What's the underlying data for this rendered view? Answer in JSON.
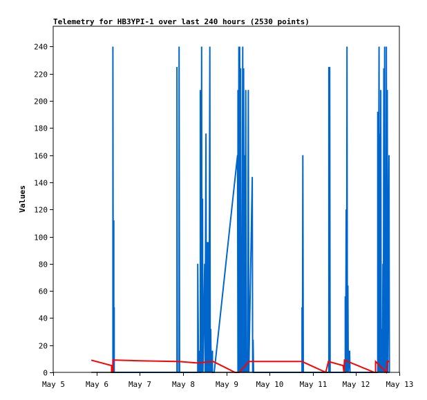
{
  "chart_data": {
    "type": "line",
    "title": "Telemetry for HB3YPI-1 over last 240 hours (2530 points)",
    "xlabel": "",
    "ylabel": "Values",
    "ylim": [
      0,
      255
    ],
    "xlim": [
      0,
      8
    ],
    "x_unit": "days since May 5",
    "yticks": [
      0,
      20,
      40,
      60,
      80,
      100,
      120,
      140,
      160,
      180,
      200,
      220,
      240
    ],
    "xticks": [
      {
        "value": 0,
        "label": "May 5"
      },
      {
        "value": 1,
        "label": "May 6"
      },
      {
        "value": 2,
        "label": "May 7"
      },
      {
        "value": 3,
        "label": "May 8"
      },
      {
        "value": 4,
        "label": "May 9"
      },
      {
        "value": 5,
        "label": "May 10"
      },
      {
        "value": 6,
        "label": "May 11"
      },
      {
        "value": 7,
        "label": "May 12"
      },
      {
        "value": 8,
        "label": "May 13"
      }
    ],
    "grid": false,
    "series": [
      {
        "name": "",
        "color": "#0066cc",
        "points": [
          [
            1.38,
            0
          ],
          [
            1.38,
            240
          ],
          [
            1.39,
            0
          ],
          [
            1.4,
            112
          ],
          [
            1.4,
            0
          ],
          [
            1.41,
            48
          ],
          [
            1.41,
            0
          ],
          [
            2.86,
            0
          ],
          [
            2.86,
            225
          ],
          [
            2.87,
            0
          ],
          [
            2.91,
            0
          ],
          [
            2.91,
            240
          ],
          [
            2.92,
            0
          ],
          [
            3.34,
            0
          ],
          [
            3.34,
            80
          ],
          [
            3.36,
            0
          ],
          [
            3.38,
            16
          ],
          [
            3.38,
            0
          ],
          [
            3.4,
            0
          ],
          [
            3.4,
            208
          ],
          [
            3.41,
            0
          ],
          [
            3.41,
            48
          ],
          [
            3.42,
            0
          ],
          [
            3.43,
            240
          ],
          [
            3.44,
            0
          ],
          [
            3.45,
            128
          ],
          [
            3.46,
            0
          ],
          [
            3.5,
            80
          ],
          [
            3.51,
            0
          ],
          [
            3.53,
            176
          ],
          [
            3.54,
            0
          ],
          [
            3.56,
            96
          ],
          [
            3.57,
            0
          ],
          [
            3.59,
            96
          ],
          [
            3.6,
            0
          ],
          [
            3.62,
            240
          ],
          [
            3.63,
            0
          ],
          [
            3.64,
            32
          ],
          [
            3.65,
            0
          ],
          [
            3.68,
            16
          ],
          [
            3.68,
            0
          ],
          [
            3.72,
            0
          ],
          [
            4.26,
            160
          ],
          [
            4.27,
            0
          ],
          [
            4.27,
            208
          ],
          [
            4.28,
            0
          ],
          [
            4.29,
            240
          ],
          [
            4.3,
            0
          ],
          [
            4.31,
            240
          ],
          [
            4.32,
            0
          ],
          [
            4.33,
            224
          ],
          [
            4.34,
            0
          ],
          [
            4.35,
            96
          ],
          [
            4.36,
            0
          ],
          [
            4.38,
            240
          ],
          [
            4.39,
            0
          ],
          [
            4.4,
            224
          ],
          [
            4.41,
            0
          ],
          [
            4.42,
            160
          ],
          [
            4.43,
            0
          ],
          [
            4.45,
            208
          ],
          [
            4.46,
            0
          ],
          [
            4.48,
            16
          ],
          [
            4.49,
            0
          ],
          [
            4.51,
            208
          ],
          [
            4.52,
            0
          ],
          [
            4.6,
            144
          ],
          [
            4.61,
            0
          ],
          [
            4.62,
            24
          ],
          [
            4.63,
            0
          ],
          [
            5.75,
            0
          ],
          [
            5.75,
            48
          ],
          [
            5.76,
            0
          ],
          [
            5.77,
            160
          ],
          [
            5.78,
            0
          ],
          [
            6.37,
            0
          ],
          [
            6.37,
            225
          ],
          [
            6.38,
            0
          ],
          [
            6.39,
            225
          ],
          [
            6.4,
            0
          ],
          [
            6.75,
            0
          ],
          [
            6.75,
            56
          ],
          [
            6.76,
            0
          ],
          [
            6.77,
            120
          ],
          [
            6.78,
            0
          ],
          [
            6.79,
            240
          ],
          [
            6.8,
            0
          ],
          [
            6.81,
            64
          ],
          [
            6.82,
            0
          ],
          [
            6.85,
            16
          ],
          [
            6.86,
            0
          ],
          [
            7.5,
            0
          ],
          [
            7.5,
            192
          ],
          [
            7.51,
            0
          ],
          [
            7.53,
            240
          ],
          [
            7.54,
            0
          ],
          [
            7.55,
            176
          ],
          [
            7.56,
            0
          ],
          [
            7.57,
            208
          ],
          [
            7.58,
            0
          ],
          [
            7.6,
            32
          ],
          [
            7.61,
            0
          ],
          [
            7.62,
            80
          ],
          [
            7.63,
            0
          ],
          [
            7.64,
            224
          ],
          [
            7.65,
            0
          ],
          [
            7.66,
            240
          ],
          [
            7.67,
            0
          ],
          [
            7.68,
            144
          ],
          [
            7.69,
            0
          ],
          [
            7.7,
            240
          ],
          [
            7.71,
            0
          ],
          [
            7.72,
            208
          ],
          [
            7.73,
            0
          ],
          [
            7.76,
            160
          ],
          [
            7.77,
            0
          ]
        ]
      },
      {
        "name": "",
        "color": "#ff0000",
        "points": [
          [
            0.88,
            9
          ],
          [
            1.35,
            5
          ],
          [
            1.35,
            0
          ],
          [
            1.38,
            0
          ],
          [
            1.38,
            9
          ],
          [
            1.45,
            9
          ],
          [
            2.0,
            8.5
          ],
          [
            2.9,
            8
          ],
          [
            3.3,
            7
          ],
          [
            3.36,
            7
          ],
          [
            3.7,
            8
          ],
          [
            4.2,
            0
          ],
          [
            4.3,
            0
          ],
          [
            4.52,
            8
          ],
          [
            5.75,
            8
          ],
          [
            6.3,
            0
          ],
          [
            6.36,
            8
          ],
          [
            6.7,
            5
          ],
          [
            6.72,
            0
          ],
          [
            6.73,
            9
          ],
          [
            7.42,
            0
          ],
          [
            7.45,
            0
          ],
          [
            7.45,
            8
          ],
          [
            7.7,
            0
          ],
          [
            7.72,
            8
          ],
          [
            7.78,
            8
          ]
        ]
      },
      {
        "name": "",
        "color": "#000000",
        "points": [
          [
            0.88,
            0
          ],
          [
            1.4,
            0
          ],
          [
            1.45,
            0
          ],
          [
            2.9,
            0
          ],
          [
            3.3,
            0
          ],
          [
            3.7,
            0
          ],
          [
            4.5,
            0
          ],
          [
            5.7,
            0
          ],
          [
            6.3,
            0
          ],
          [
            6.7,
            0
          ],
          [
            7.4,
            0
          ],
          [
            7.78,
            0
          ]
        ]
      }
    ]
  }
}
